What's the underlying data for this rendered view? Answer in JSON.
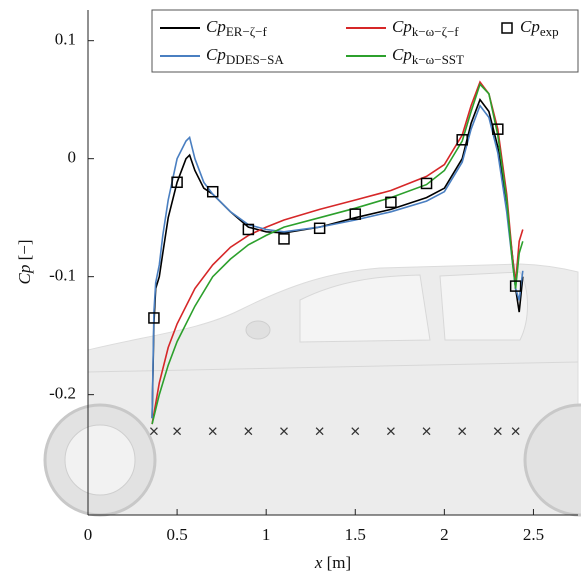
{
  "chart_data": {
    "type": "line",
    "xlabel": {
      "var": "x",
      "unit": "[m]"
    },
    "ylabel": {
      "var": "Cp",
      "unit": "[−]"
    },
    "xlim": [
      0,
      2.75
    ],
    "ylim": [
      -0.302,
      0.126
    ],
    "xticks": [
      0,
      0.5,
      1,
      1.5,
      2,
      2.5
    ],
    "yticks": [
      0.1,
      0,
      -0.1,
      -0.2
    ],
    "series": [
      {
        "name": "Cp",
        "subscript": "ER−ζ−f",
        "color": "#000000",
        "x": [
          0.36,
          0.37,
          0.38,
          0.4,
          0.42,
          0.45,
          0.5,
          0.55,
          0.57,
          0.6,
          0.65,
          0.7,
          0.8,
          0.9,
          1.0,
          1.1,
          1.3,
          1.5,
          1.7,
          1.9,
          2.0,
          2.1,
          2.15,
          2.2,
          2.25,
          2.3,
          2.35,
          2.38,
          2.4,
          2.42,
          2.44
        ],
        "values": [
          -0.22,
          -0.14,
          -0.11,
          -0.1,
          -0.08,
          -0.05,
          -0.02,
          0.0,
          0.003,
          -0.01,
          -0.025,
          -0.03,
          -0.045,
          -0.058,
          -0.062,
          -0.063,
          -0.058,
          -0.05,
          -0.043,
          -0.033,
          -0.025,
          0.0,
          0.03,
          0.05,
          0.04,
          0.01,
          -0.04,
          -0.08,
          -0.11,
          -0.13,
          -0.1
        ]
      },
      {
        "name": "Cp",
        "subscript": "k−ω−ζ−f",
        "color": "#d62728",
        "x": [
          0.36,
          0.4,
          0.45,
          0.5,
          0.6,
          0.7,
          0.8,
          0.9,
          1.0,
          1.1,
          1.3,
          1.5,
          1.7,
          1.9,
          2.0,
          2.1,
          2.15,
          2.2,
          2.25,
          2.3,
          2.35,
          2.38,
          2.4,
          2.42,
          2.44
        ],
        "values": [
          -0.225,
          -0.19,
          -0.16,
          -0.14,
          -0.11,
          -0.09,
          -0.075,
          -0.065,
          -0.058,
          -0.052,
          -0.043,
          -0.035,
          -0.027,
          -0.015,
          -0.005,
          0.02,
          0.045,
          0.065,
          0.055,
          0.025,
          -0.03,
          -0.08,
          -0.105,
          -0.07,
          -0.06
        ]
      },
      {
        "name": "Cp",
        "subscript": "DDES−SA",
        "color": "#4a7fc1",
        "x": [
          0.36,
          0.37,
          0.38,
          0.4,
          0.42,
          0.45,
          0.5,
          0.55,
          0.57,
          0.6,
          0.65,
          0.7,
          0.8,
          0.9,
          1.0,
          1.1,
          1.3,
          1.5,
          1.7,
          1.9,
          2.0,
          2.1,
          2.15,
          2.2,
          2.25,
          2.3,
          2.35,
          2.38,
          2.4,
          2.42,
          2.44
        ],
        "values": [
          -0.22,
          -0.13,
          -0.105,
          -0.09,
          -0.065,
          -0.035,
          0.0,
          0.015,
          0.018,
          0.0,
          -0.02,
          -0.03,
          -0.045,
          -0.056,
          -0.06,
          -0.062,
          -0.058,
          -0.052,
          -0.045,
          -0.036,
          -0.028,
          -0.003,
          0.025,
          0.045,
          0.035,
          0.005,
          -0.045,
          -0.085,
          -0.11,
          -0.12,
          -0.095
        ]
      },
      {
        "name": "Cp",
        "subscript": "k−ω−SST",
        "color": "#2ca02c",
        "x": [
          0.36,
          0.4,
          0.45,
          0.5,
          0.6,
          0.7,
          0.8,
          0.9,
          1.0,
          1.1,
          1.3,
          1.5,
          1.7,
          1.9,
          2.0,
          2.1,
          2.15,
          2.2,
          2.25,
          2.3,
          2.35,
          2.38,
          2.4,
          2.42,
          2.44
        ],
        "values": [
          -0.225,
          -0.2,
          -0.175,
          -0.155,
          -0.125,
          -0.1,
          -0.085,
          -0.073,
          -0.065,
          -0.058,
          -0.05,
          -0.042,
          -0.033,
          -0.022,
          -0.01,
          0.015,
          0.04,
          0.063,
          0.055,
          0.02,
          -0.035,
          -0.085,
          -0.11,
          -0.08,
          -0.07
        ]
      },
      {
        "name": "Cp",
        "subscript": "exp",
        "color": "#000000",
        "marker": "square",
        "x": [
          0.37,
          0.5,
          0.7,
          0.9,
          1.1,
          1.3,
          1.5,
          1.7,
          1.9,
          2.1,
          2.3,
          2.4
        ],
        "values": [
          -0.135,
          -0.02,
          -0.028,
          -0.06,
          -0.068,
          -0.059,
          -0.047,
          -0.037,
          -0.021,
          0.016,
          0.025,
          -0.108
        ]
      }
    ],
    "probes": {
      "marker": "x",
      "color": "#333333",
      "x": [
        0.37,
        0.5,
        0.7,
        0.9,
        1.1,
        1.3,
        1.5,
        1.7,
        1.9,
        2.1,
        2.3,
        2.4
      ],
      "values": [
        -0.231,
        -0.231,
        -0.231,
        -0.231,
        -0.231,
        -0.231,
        -0.231,
        -0.231,
        -0.231,
        -0.231,
        -0.231,
        -0.231
      ]
    }
  }
}
